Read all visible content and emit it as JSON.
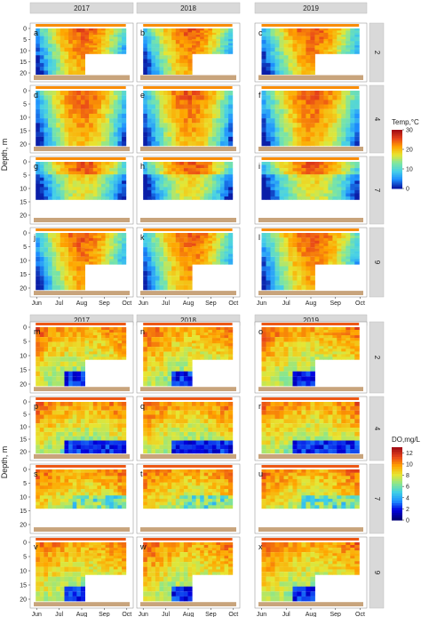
{
  "figure": {
    "years": [
      "2017",
      "2018",
      "2019"
    ],
    "months": [
      "Jun",
      "Jul",
      "Aug",
      "Sep",
      "Oct"
    ],
    "depth_label": "Depth, m",
    "depth_ticks": [
      "0",
      "5",
      "10",
      "15",
      "20"
    ],
    "strip_labels": [
      "2",
      "4",
      "7",
      "9"
    ]
  },
  "chart_data": [
    {
      "type": "heatmap",
      "variable": "temperature",
      "legend_title": "Temp,°C",
      "legend_ticks": [
        "30",
        "20",
        "10",
        "0"
      ],
      "legend_range": [
        0,
        30
      ],
      "ylabel": "Depth, m",
      "ylim": [
        23,
        -1
      ],
      "x_range": [
        "Jun",
        "Oct"
      ],
      "panels": [
        {
          "letter": "a",
          "year": "2017",
          "site": "2"
        },
        {
          "letter": "b",
          "year": "2018",
          "site": "2"
        },
        {
          "letter": "c",
          "year": "2019",
          "site": "2"
        },
        {
          "letter": "d",
          "year": "2017",
          "site": "4"
        },
        {
          "letter": "e",
          "year": "2018",
          "site": "4"
        },
        {
          "letter": "f",
          "year": "2019",
          "site": "4"
        },
        {
          "letter": "g",
          "year": "2017",
          "site": "7"
        },
        {
          "letter": "h",
          "year": "2018",
          "site": "7"
        },
        {
          "letter": "i",
          "year": "2019",
          "site": "7"
        },
        {
          "letter": "j",
          "year": "2017",
          "site": "9"
        },
        {
          "letter": "k",
          "year": "2018",
          "site": "9"
        },
        {
          "letter": "l",
          "year": "2019",
          "site": "9"
        }
      ]
    },
    {
      "type": "heatmap",
      "variable": "dissolved_oxygen",
      "legend_title": "DO,mg/L",
      "legend_ticks": [
        "12",
        "10",
        "8",
        "6",
        "4",
        "2",
        "0"
      ],
      "legend_range": [
        0,
        13
      ],
      "ylabel": "Depth, m",
      "ylim": [
        23,
        -1
      ],
      "x_range": [
        "Jun",
        "Oct"
      ],
      "panels": [
        {
          "letter": "m",
          "year": "2017",
          "site": "2"
        },
        {
          "letter": "n",
          "year": "2018",
          "site": "2"
        },
        {
          "letter": "o",
          "year": "2019",
          "site": "2"
        },
        {
          "letter": "p",
          "year": "2017",
          "site": "4"
        },
        {
          "letter": "q",
          "year": "2018",
          "site": "4"
        },
        {
          "letter": "r",
          "year": "2019",
          "site": "4"
        },
        {
          "letter": "s",
          "year": "2017",
          "site": "7"
        },
        {
          "letter": "t",
          "year": "2018",
          "site": "7"
        },
        {
          "letter": "u",
          "year": "2019",
          "site": "7"
        },
        {
          "letter": "v",
          "year": "2017",
          "site": "9"
        },
        {
          "letter": "w",
          "year": "2018",
          "site": "9"
        },
        {
          "letter": "x",
          "year": "2019",
          "site": "9"
        }
      ]
    }
  ],
  "colors": {
    "strip": "#d9d9d9",
    "sediment": "#c8a47c",
    "temp_scale": [
      "#0a1ea8",
      "#1e90ff",
      "#48d1e6",
      "#7fe6a0",
      "#e6e633",
      "#ffa500",
      "#e8451a",
      "#a50f15"
    ],
    "do_scale": [
      "#00007a",
      "#0000e0",
      "#1e90ff",
      "#3fd0e6",
      "#8be68b",
      "#e6e633",
      "#ffa500",
      "#e8451a",
      "#a50f15"
    ]
  }
}
